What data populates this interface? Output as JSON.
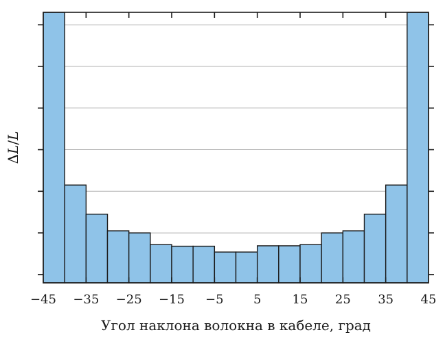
{
  "chart_data": {
    "type": "bar",
    "title": "",
    "xlabel": "Угол наклона волокна в кабеле, град",
    "ylabel_prefix": "Δ",
    "ylabel_var": "L",
    "ylabel_sep": "/",
    "ylabel_den": "L",
    "bin_edges": [
      -45,
      -40,
      -35,
      -30,
      -25,
      -20,
      -15,
      -10,
      -5,
      0,
      5,
      10,
      15,
      20,
      25,
      30,
      35,
      40,
      45
    ],
    "values": [
      6.3,
      2.15,
      1.45,
      1.05,
      1.0,
      0.72,
      0.68,
      0.68,
      0.54,
      0.54,
      0.69,
      0.69,
      0.72,
      1.0,
      1.05,
      1.45,
      2.15,
      6.3
    ],
    "xlim": [
      -45,
      45
    ],
    "ylim": [
      -0.2,
      6.3
    ],
    "x_tick_labels": [
      "−45",
      "−35",
      "−25",
      "−15",
      "−5",
      "5",
      "15",
      "25",
      "35",
      "45"
    ],
    "x_tick_values": [
      -45,
      -35,
      -25,
      -15,
      -5,
      5,
      15,
      25,
      35,
      45
    ],
    "y_ticks": [
      0,
      1,
      2,
      3,
      4,
      5,
      6
    ],
    "y_tick_labels_shown": false,
    "grid": "horizontal",
    "bar_color": "#8fc3e8",
    "bar_edge_color": "#1a1a1a",
    "grid_color": "#b0b0b0"
  }
}
